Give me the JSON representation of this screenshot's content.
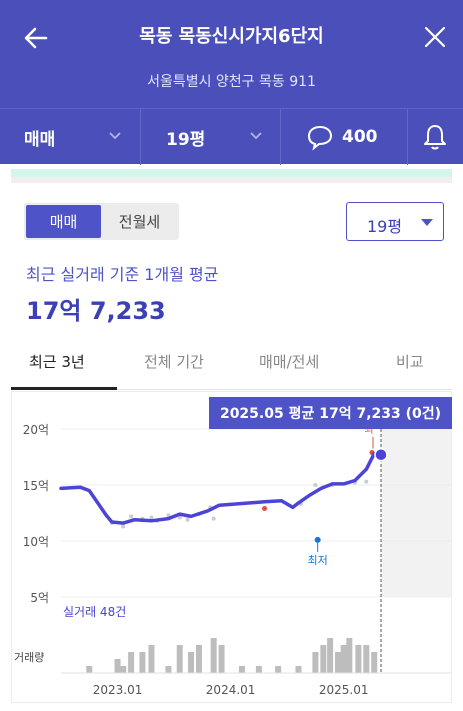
{
  "header": {
    "title": "목동 목동신시가지6단지",
    "address": "서울특별시 양천구 목동 911",
    "tabs": {
      "trade": "매매",
      "size": "19평",
      "comments": "400"
    }
  },
  "toggle": {
    "sale": "매매",
    "lease": "전월세"
  },
  "size_dropdown": "19평",
  "summary": {
    "label": "최근 실거래 기준 1개월 평균",
    "value": "17억 7,233"
  },
  "period_tabs": [
    "최근 3년",
    "전체 기간",
    "매매/전세",
    "비교"
  ],
  "tooltip": "2025.05 평균 17억 7,233 (0건)",
  "chart_data": {
    "type": "line",
    "ylim": [
      5,
      20
    ],
    "yticks": [
      {
        "v": 20,
        "label": "20억"
      },
      {
        "v": 15,
        "label": "15억"
      },
      {
        "v": 10,
        "label": "10억"
      },
      {
        "v": 5,
        "label": "5억"
      }
    ],
    "xticks": [
      {
        "t": 0.0,
        "label": "2023.01"
      },
      {
        "t": 1.0,
        "label": "2024.01"
      },
      {
        "t": 2.0,
        "label": "2025.01"
      }
    ],
    "x_start": -0.5,
    "x_end": 2.33,
    "series": [
      {
        "points": [
          [
            -0.5,
            14.7
          ],
          [
            -0.33,
            14.8
          ],
          [
            -0.25,
            14.5
          ],
          [
            -0.1,
            12.3
          ],
          [
            -0.05,
            11.7
          ],
          [
            0.05,
            11.6
          ],
          [
            0.15,
            11.9
          ],
          [
            0.3,
            11.8
          ],
          [
            0.45,
            12.0
          ],
          [
            0.55,
            12.4
          ],
          [
            0.65,
            12.2
          ],
          [
            0.8,
            12.7
          ],
          [
            0.9,
            13.2
          ],
          [
            1.3,
            13.5
          ],
          [
            1.45,
            13.6
          ],
          [
            1.55,
            13.0
          ],
          [
            1.6,
            13.4
          ],
          [
            1.7,
            14.1
          ],
          [
            1.8,
            14.7
          ],
          [
            1.9,
            15.1
          ],
          [
            2.0,
            15.1
          ],
          [
            2.1,
            15.4
          ],
          [
            2.15,
            15.9
          ],
          [
            2.2,
            16.4
          ],
          [
            2.27,
            17.8
          ],
          [
            2.33,
            17.7
          ]
        ]
      }
    ],
    "scatter": [
      [
        -0.05,
        11.6
      ],
      [
        0.05,
        11.3
      ],
      [
        0.12,
        12.2
      ],
      [
        0.22,
        12.0
      ],
      [
        0.3,
        12.1
      ],
      [
        0.35,
        11.8
      ],
      [
        0.45,
        12.3
      ],
      [
        0.55,
        12.1
      ],
      [
        0.62,
        11.9
      ],
      [
        0.72,
        12.4
      ],
      [
        0.82,
        13.0
      ],
      [
        0.85,
        12.0
      ],
      [
        1.62,
        13.3
      ],
      [
        1.75,
        15.0
      ],
      [
        1.82,
        14.8
      ],
      [
        1.9,
        15.0
      ],
      [
        2.1,
        15.2
      ],
      [
        2.2,
        15.3
      ]
    ],
    "red_points": [
      [
        1.3,
        12.9
      ],
      [
        2.25,
        17.9
      ]
    ],
    "min_point": {
      "x": 1.77,
      "y": 10.1
    },
    "min_label": "최저",
    "max_label": "최",
    "highlight": {
      "x": 2.33,
      "y": 17.7
    },
    "trade_count_label": "실거래 48건",
    "volume_label": "거래량",
    "volume": [
      [
        -0.25,
        1
      ],
      [
        -0.1,
        0
      ],
      [
        0.0,
        2
      ],
      [
        0.05,
        1
      ],
      [
        0.12,
        3
      ],
      [
        0.22,
        3
      ],
      [
        0.3,
        4
      ],
      [
        0.45,
        1
      ],
      [
        0.55,
        4
      ],
      [
        0.65,
        3
      ],
      [
        0.72,
        4
      ],
      [
        0.85,
        5
      ],
      [
        0.92,
        4
      ],
      [
        1.1,
        1
      ],
      [
        1.25,
        1
      ],
      [
        1.42,
        1
      ],
      [
        1.6,
        1
      ],
      [
        1.75,
        3
      ],
      [
        1.82,
        4
      ],
      [
        1.88,
        5
      ],
      [
        1.95,
        3
      ],
      [
        2.0,
        4
      ],
      [
        2.05,
        5
      ],
      [
        2.13,
        4
      ],
      [
        2.2,
        4
      ],
      [
        2.27,
        3
      ]
    ]
  },
  "colors": {
    "primary": "#4b4fb9",
    "line": "#4b44d6",
    "mint": "#d4f5ec"
  }
}
